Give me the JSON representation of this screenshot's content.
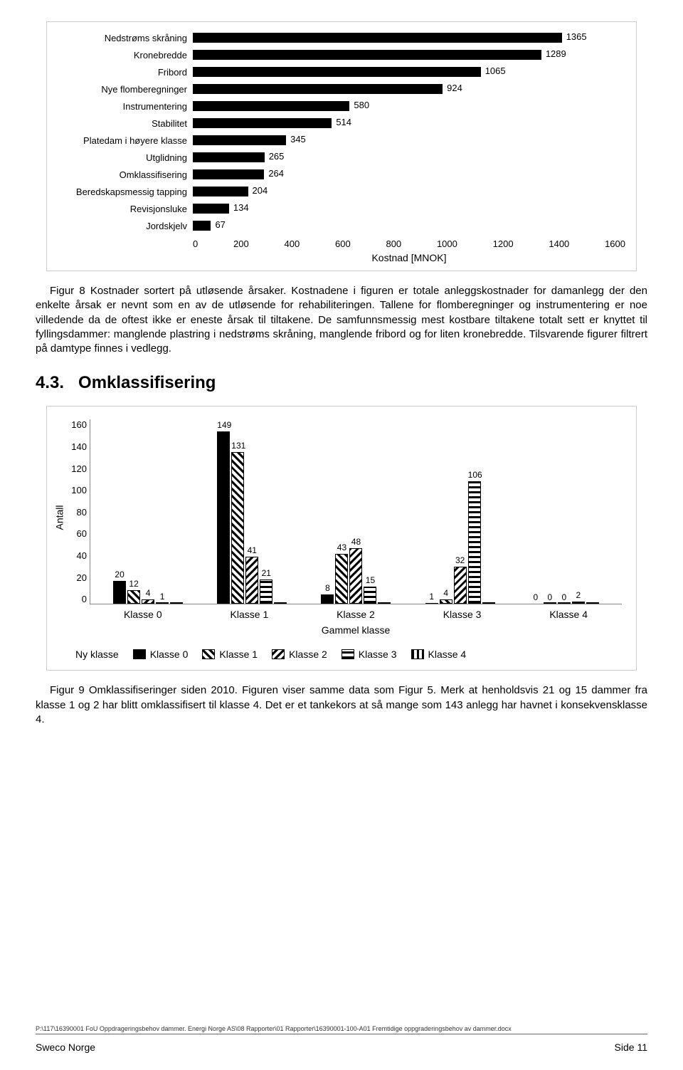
{
  "chart1": {
    "type": "bar-horizontal",
    "xlim_max": 1600,
    "plot_color": "#000000",
    "xticks": [
      "0",
      "200",
      "400",
      "600",
      "800",
      "1000",
      "1200",
      "1400",
      "1600"
    ],
    "xtitle": "Kostnad [MNOK]",
    "rows": [
      {
        "label": "Nedstrøms skråning",
        "value": 1365
      },
      {
        "label": "Kronebredde",
        "value": 1289
      },
      {
        "label": "Fribord",
        "value": 1065
      },
      {
        "label": "Nye flomberegninger",
        "value": 924
      },
      {
        "label": "Instrumentering",
        "value": 580
      },
      {
        "label": "Stabilitet",
        "value": 514
      },
      {
        "label": "Platedam i høyere klasse",
        "value": 345
      },
      {
        "label": "Utglidning",
        "value": 265
      },
      {
        "label": "Omklassifisering",
        "value": 264
      },
      {
        "label": "Beredskapsmessig tapping",
        "value": 204
      },
      {
        "label": "Revisjonsluke",
        "value": 134
      },
      {
        "label": "Jordskjelv",
        "value": 67
      }
    ]
  },
  "caption1": "Figur 8 Kostnader sortert på utløsende årsaker. Kostnadene i figuren er totale anleggskostnader for damanlegg der den enkelte årsak er nevnt som en av de utløsende for rehabiliteringen. Tallene for flomberegninger og instrumentering er noe villedende da de oftest ikke er eneste årsak til tiltakene. De samfunnsmessig mest kostbare tiltakene totalt sett er knyttet til fyllingsdammer: manglende plastring i nedstrøms skråning, manglende fribord og for liten kronebredde. Tilsvarende figurer filtrert på damtype finnes i vedlegg.",
  "section": {
    "num": "4.3.",
    "title": "Omklassifisering"
  },
  "chart2": {
    "type": "bar-grouped",
    "ylabel": "Antall",
    "ymax": 160,
    "yticks": [
      "160",
      "140",
      "120",
      "100",
      "80",
      "60",
      "40",
      "20",
      "0"
    ],
    "xtitle": "Gammel klasse",
    "categories": [
      "Klasse 0",
      "Klasse 1",
      "Klasse 2",
      "Klasse 3",
      "Klasse 4"
    ],
    "legend_title": "Ny klasse",
    "series": [
      {
        "name": "Klasse 0",
        "pattern": "pat-solid"
      },
      {
        "name": "Klasse 1",
        "pattern": "pat-diag"
      },
      {
        "name": "Klasse 2",
        "pattern": "pat-diag2"
      },
      {
        "name": "Klasse 3",
        "pattern": "pat-horiz"
      },
      {
        "name": "Klasse 4",
        "pattern": "pat-vert"
      }
    ],
    "data": [
      [
        20,
        12,
        4,
        1,
        0
      ],
      [
        149,
        131,
        41,
        21,
        0
      ],
      [
        8,
        43,
        48,
        15,
        0
      ],
      [
        1,
        4,
        32,
        106,
        0
      ],
      [
        0,
        0,
        0,
        2,
        0
      ]
    ],
    "data_labels": [
      [
        "20",
        "12",
        "4",
        "1",
        ""
      ],
      [
        "149",
        "131",
        "41",
        "21",
        ""
      ],
      [
        "8",
        "43",
        "48",
        "15",
        ""
      ],
      [
        "1",
        "4",
        "32",
        "106",
        ""
      ],
      [
        "0",
        "0",
        "0",
        "2",
        ""
      ]
    ]
  },
  "caption2": "Figur 9 Omklassifiseringer siden 2010. Figuren viser samme data som Figur 5. Merk at henholdsvis 21 og 15 dammer fra klasse 1 og 2 har blitt omklassifisert til klasse 4. Det er et tankekors at så mange som 143 anlegg har havnet i konsekvensklasse 4.",
  "footer": {
    "path": "P:\\117\\16390001 FoU Oppdrageringsbehov dammer. Energi Norge AS\\08 Rapporter\\01 Rapporter\\16390001-100-A01 Fremtidige oppgraderingsbehov av dammer.docx",
    "left": "Sweco Norge",
    "right": "Side 11"
  }
}
